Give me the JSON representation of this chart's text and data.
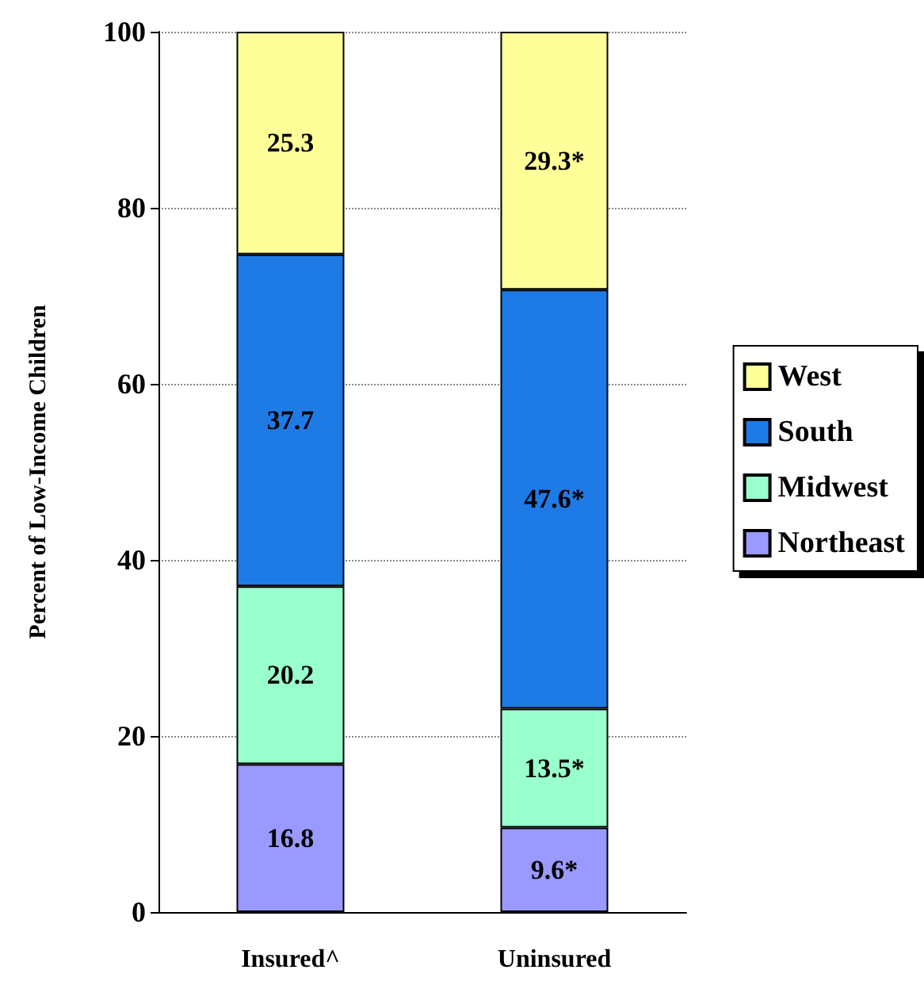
{
  "chart_data": {
    "type": "bar",
    "stacked": true,
    "ylabel": "Percent of Low-Income Children",
    "categories": [
      "Insured^",
      "Uninsured"
    ],
    "series": [
      {
        "name": "Northeast",
        "color": "#9999ff",
        "values": [
          16.8,
          9.6
        ],
        "value_labels": [
          "16.8",
          "9.6*"
        ]
      },
      {
        "name": "Midwest",
        "color": "#99ffcc",
        "values": [
          20.2,
          13.5
        ],
        "value_labels": [
          "20.2",
          "13.5*"
        ]
      },
      {
        "name": "South",
        "color": "#1e7be6",
        "values": [
          37.7,
          47.6
        ],
        "value_labels": [
          "37.7",
          "47.6*"
        ]
      },
      {
        "name": "West",
        "color": "#ffff99",
        "values": [
          25.3,
          29.3
        ],
        "value_labels": [
          "25.3",
          "29.3*"
        ]
      }
    ],
    "ylim": [
      0,
      100
    ],
    "yticks": [
      0,
      20,
      40,
      60,
      80,
      100
    ],
    "grid": "y",
    "legend": "right"
  }
}
